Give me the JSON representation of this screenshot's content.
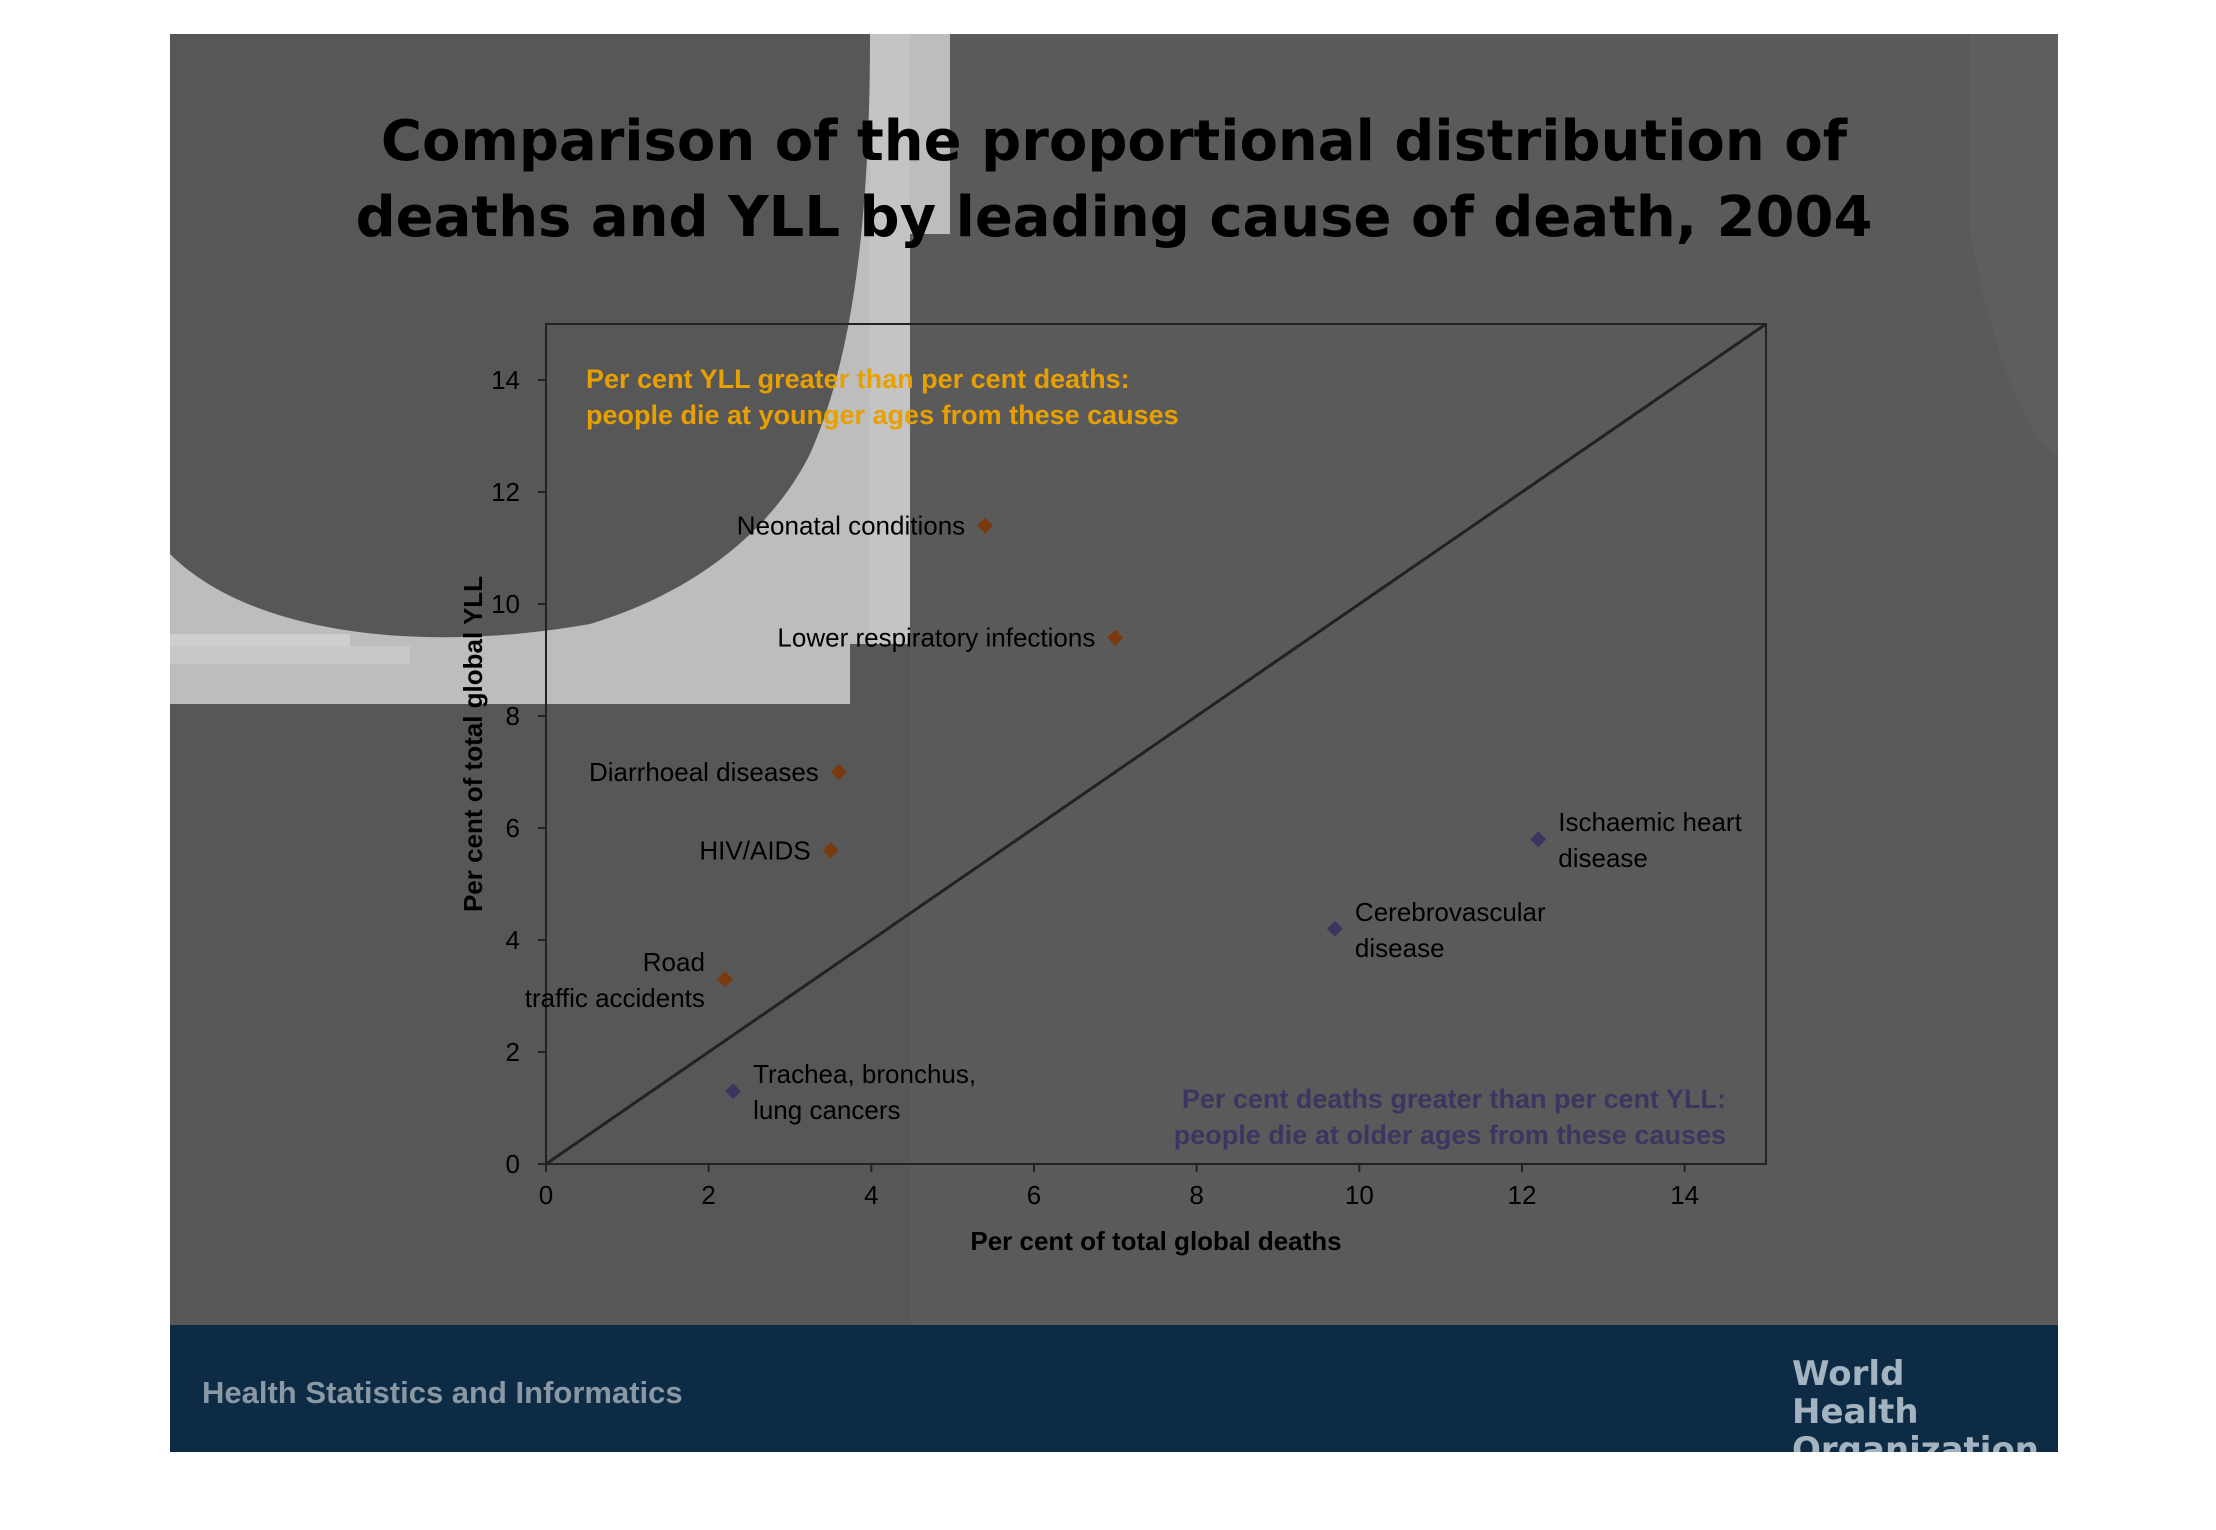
{
  "slide": {
    "title_line1": "Comparison of the proportional distribution of",
    "title_line2": "deaths and YLL by leading cause of death, 2004",
    "footer_text": "Health Statistics and Informatics",
    "org_name_line1": "World Health",
    "org_name_line2": "Organization",
    "colors": {
      "background": "#575757",
      "footer": "#0d2b45",
      "yll_greater": "#7a3a0e",
      "deaths_greater": "#3b3560",
      "annotation_upper": "#e8a000",
      "annotation_lower": "#3b3560"
    },
    "icons": [
      "who-emblem-icon"
    ]
  },
  "chart_data": {
    "type": "scatter",
    "xlabel": "Per cent of total global deaths",
    "ylabel": "Per cent of total global YLL",
    "xlim": [
      0,
      15
    ],
    "ylim": [
      0,
      15
    ],
    "xticks": [
      0,
      2,
      4,
      6,
      8,
      10,
      12,
      14
    ],
    "yticks": [
      0,
      2,
      4,
      6,
      8,
      10,
      12,
      14
    ],
    "diagonal": true,
    "grid": false,
    "annotations": [
      {
        "lines": [
          "Per cent YLL greater than per cent deaths:",
          "people die at younger ages from these causes"
        ],
        "placement": "top-left"
      },
      {
        "lines": [
          "Per cent deaths greater than per cent YLL:",
          "people die at older ages from these causes"
        ],
        "placement": "bottom-right"
      }
    ],
    "points": [
      {
        "label": [
          "Neonatal conditions"
        ],
        "x": 5.4,
        "y": 11.4,
        "group": "yll_greater"
      },
      {
        "label": [
          "Lower respiratory infections"
        ],
        "x": 7.0,
        "y": 9.4,
        "group": "yll_greater"
      },
      {
        "label": [
          "Diarrhoeal diseases"
        ],
        "x": 3.6,
        "y": 7.0,
        "group": "yll_greater"
      },
      {
        "label": [
          "HIV/AIDS"
        ],
        "x": 3.5,
        "y": 5.6,
        "group": "yll_greater"
      },
      {
        "label": [
          "Road",
          "traffic accidents"
        ],
        "x": 2.2,
        "y": 3.3,
        "group": "yll_greater"
      },
      {
        "label": [
          "Trachea, bronchus,",
          "lung cancers"
        ],
        "x": 2.3,
        "y": 1.3,
        "group": "deaths_greater"
      },
      {
        "label": [
          "Cerebrovascular",
          "disease"
        ],
        "x": 9.7,
        "y": 4.2,
        "group": "deaths_greater"
      },
      {
        "label": [
          "Ischaemic heart",
          "disease"
        ],
        "x": 12.2,
        "y": 5.8,
        "group": "deaths_greater"
      }
    ]
  }
}
